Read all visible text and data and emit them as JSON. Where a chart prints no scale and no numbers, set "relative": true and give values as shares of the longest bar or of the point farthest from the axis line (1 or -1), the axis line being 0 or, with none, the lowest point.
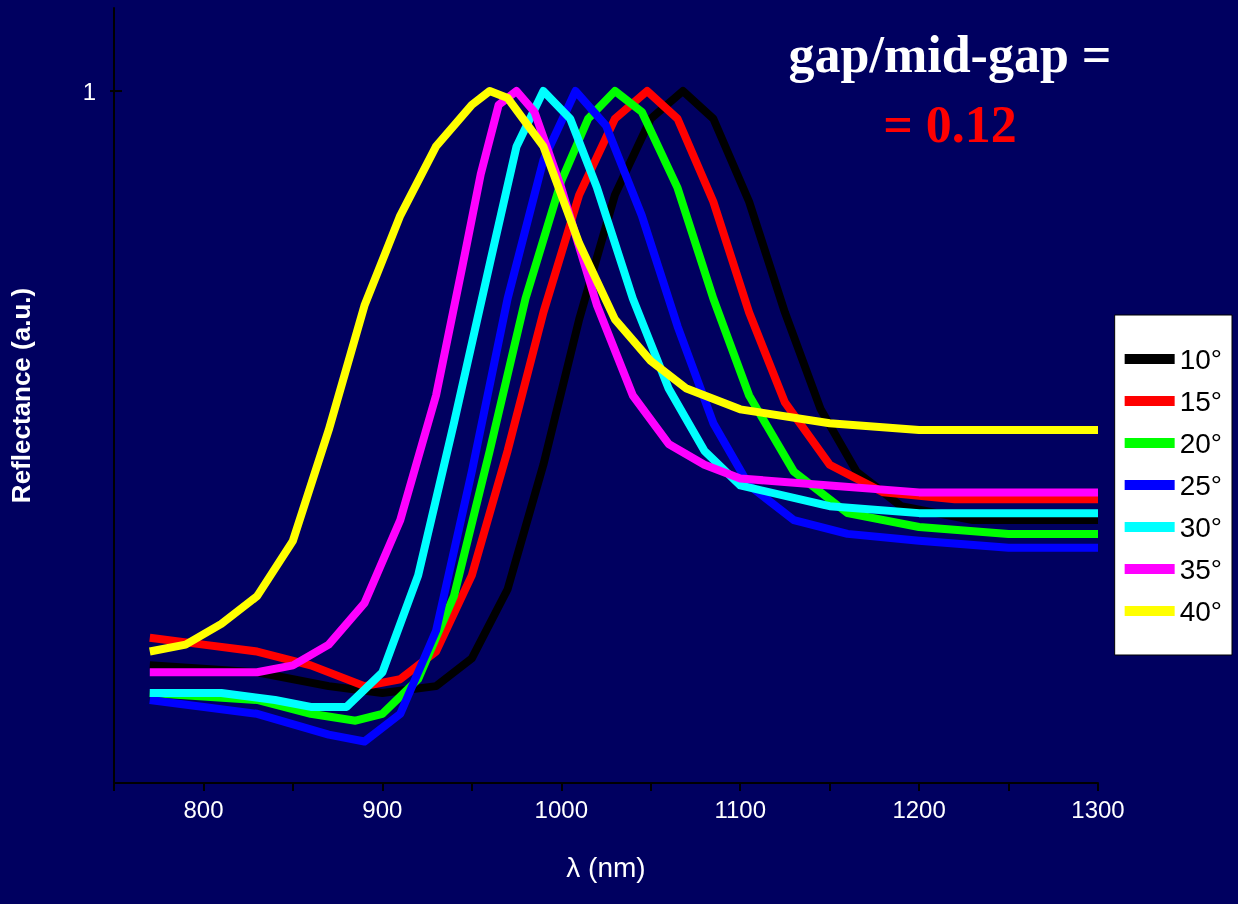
{
  "chart_data": {
    "type": "line",
    "relative": true,
    "xlabel": "λ (nm)",
    "ylabel": "Reflectance (a.u.)",
    "annotations": [
      "gap/mid-gap =",
      "= 0.12",
      "1"
    ],
    "xlim": [
      750,
      1300
    ],
    "xticks": [
      {
        "value": 750,
        "label": null
      },
      800,
      {
        "value": 850,
        "label": null
      },
      900,
      {
        "value": 950,
        "label": null
      },
      1000,
      {
        "value": 1050,
        "label": null
      },
      1100,
      {
        "value": 1150,
        "label": null
      },
      1200,
      {
        "value": 1250,
        "label": null
      },
      1300
    ],
    "legend": "right",
    "grid": false,
    "series": [
      {
        "name": "10°",
        "color": "#000000",
        "x": [
          770,
          830,
          870,
          900,
          930,
          950,
          970,
          990,
          1010,
          1030,
          1050,
          1068,
          1085,
          1105,
          1125,
          1145,
          1165,
          1190,
          1230,
          1270,
          1300
        ],
        "values": [
          0.17,
          0.16,
          0.14,
          0.13,
          0.14,
          0.18,
          0.28,
          0.46,
          0.67,
          0.85,
          0.96,
          1.0,
          0.96,
          0.84,
          0.68,
          0.54,
          0.45,
          0.4,
          0.38,
          0.38,
          0.38
        ]
      },
      {
        "name": "15°",
        "color": "#ff0000",
        "x": [
          770,
          800,
          830,
          860,
          890,
          910,
          930,
          950,
          970,
          990,
          1010,
          1030,
          1048,
          1065,
          1085,
          1105,
          1125,
          1150,
          1180,
          1220,
          1260,
          1300
        ],
        "values": [
          0.21,
          0.2,
          0.19,
          0.17,
          0.14,
          0.15,
          0.19,
          0.3,
          0.48,
          0.68,
          0.85,
          0.96,
          1.0,
          0.96,
          0.84,
          0.68,
          0.55,
          0.46,
          0.42,
          0.41,
          0.41,
          0.41
        ]
      },
      {
        "name": "20°",
        "color": "#00ff00",
        "x": [
          770,
          830,
          860,
          885,
          900,
          920,
          940,
          960,
          980,
          1000,
          1015,
          1030,
          1045,
          1065,
          1085,
          1105,
          1130,
          1160,
          1200,
          1250,
          1300
        ],
        "values": [
          0.13,
          0.12,
          0.1,
          0.09,
          0.1,
          0.15,
          0.27,
          0.48,
          0.7,
          0.87,
          0.96,
          1.0,
          0.97,
          0.86,
          0.7,
          0.56,
          0.45,
          0.39,
          0.37,
          0.36,
          0.36
        ]
      },
      {
        "name": "25°",
        "color": "#0000ff",
        "x": [
          770,
          830,
          870,
          890,
          910,
          930,
          950,
          970,
          990,
          1008,
          1025,
          1045,
          1065,
          1085,
          1105,
          1130,
          1160,
          1200,
          1250,
          1300
        ],
        "values": [
          0.12,
          0.1,
          0.07,
          0.06,
          0.1,
          0.22,
          0.45,
          0.7,
          0.9,
          1.0,
          0.95,
          0.82,
          0.66,
          0.52,
          0.43,
          0.38,
          0.36,
          0.35,
          0.34,
          0.34
        ]
      },
      {
        "name": "30°",
        "color": "#00ffff",
        "x": [
          770,
          810,
          840,
          860,
          880,
          900,
          920,
          940,
          960,
          975,
          990,
          1005,
          1020,
          1040,
          1060,
          1080,
          1100,
          1150,
          1200,
          1250,
          1300
        ],
        "values": [
          0.13,
          0.13,
          0.12,
          0.11,
          0.11,
          0.16,
          0.3,
          0.52,
          0.75,
          0.92,
          1.0,
          0.96,
          0.86,
          0.7,
          0.57,
          0.48,
          0.43,
          0.4,
          0.39,
          0.39,
          0.39
        ]
      },
      {
        "name": "35°",
        "color": "#ff00ff",
        "x": [
          770,
          800,
          830,
          850,
          870,
          890,
          910,
          930,
          945,
          955,
          965,
          975,
          985,
          1000,
          1020,
          1040,
          1060,
          1080,
          1100,
          1150,
          1200,
          1250,
          1300
        ],
        "values": [
          0.16,
          0.16,
          0.16,
          0.17,
          0.2,
          0.26,
          0.38,
          0.56,
          0.75,
          0.88,
          0.98,
          1.0,
          0.97,
          0.86,
          0.69,
          0.56,
          0.49,
          0.46,
          0.44,
          0.43,
          0.42,
          0.42,
          0.42
        ]
      },
      {
        "name": "40°",
        "color": "#ffff00",
        "x": [
          770,
          790,
          810,
          830,
          850,
          870,
          890,
          910,
          930,
          950,
          960,
          970,
          990,
          1010,
          1030,
          1050,
          1070,
          1100,
          1150,
          1200,
          1250,
          1300
        ],
        "values": [
          0.19,
          0.2,
          0.23,
          0.27,
          0.35,
          0.51,
          0.69,
          0.82,
          0.92,
          0.98,
          1.0,
          0.99,
          0.92,
          0.78,
          0.67,
          0.61,
          0.57,
          0.54,
          0.52,
          0.51,
          0.51,
          0.51
        ]
      }
    ]
  }
}
